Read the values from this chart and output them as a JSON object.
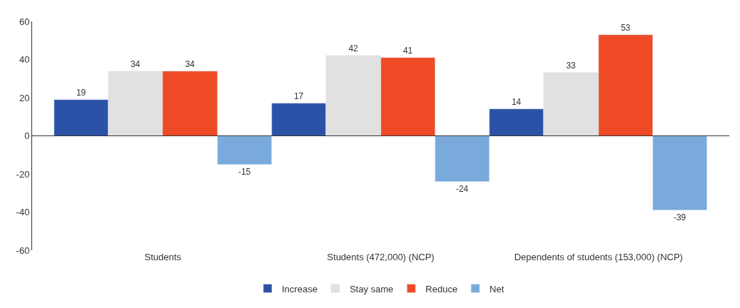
{
  "chart_data": {
    "type": "bar",
    "categories": [
      "Students",
      "Students (472,000) (NCP)",
      "Dependents of students (153,000) (NCP)"
    ],
    "series": [
      {
        "name": "Increase",
        "color": "#2b52a6",
        "values": [
          19,
          17,
          14
        ]
      },
      {
        "name": "Stay same",
        "color": "#e1e1e1",
        "values": [
          34,
          42,
          33
        ]
      },
      {
        "name": "Reduce",
        "color": "#ee4a26",
        "values": [
          34,
          41,
          53
        ]
      },
      {
        "name": "Net",
        "color": "#7aaadc",
        "values": [
          -15,
          -24,
          -39
        ]
      }
    ],
    "ylim": [
      -60,
      60
    ],
    "yticks": [
      -60,
      -40,
      -20,
      0,
      20,
      40,
      60
    ],
    "ref_lines": [
      {
        "axis": "y",
        "value": 0,
        "color": "#333333"
      }
    ],
    "legend": "bottom",
    "data_labels": true
  }
}
